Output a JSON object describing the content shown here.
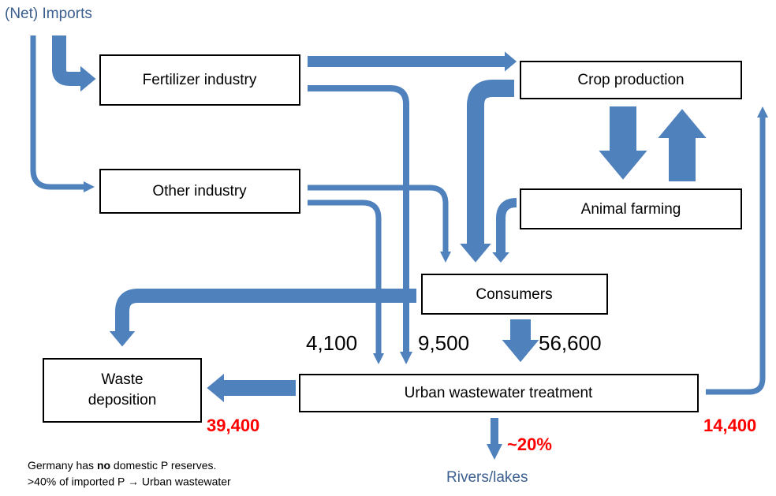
{
  "header": {
    "title": "(Net) Imports"
  },
  "nodes": [
    {
      "label": "Fertilizer industry"
    },
    {
      "label": "Other industry"
    },
    {
      "label": "Crop production"
    },
    {
      "label": "Animal farming"
    },
    {
      "label": "Consumers"
    },
    {
      "lines": [
        "Waste",
        "deposition"
      ]
    },
    {
      "label": "Urban wastewater treatment"
    }
  ],
  "flows": [
    {
      "label": "4,100"
    },
    {
      "label": "9,500"
    },
    {
      "label": "56,600"
    },
    {
      "label": "39,400"
    },
    {
      "label": "14,400"
    },
    {
      "label": "~20%"
    }
  ],
  "outlet": {
    "label": "Rivers/lakes"
  },
  "notes": [
    {
      "parts": [
        "Germany has ",
        "no",
        " domestic P reserves."
      ]
    },
    {
      "text": ">40% of imported P → Urban wastewater"
    }
  ]
}
